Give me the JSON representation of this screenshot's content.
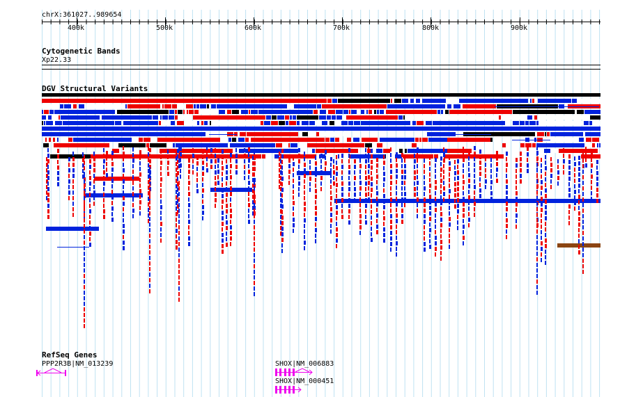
{
  "region_label": "chrX:361027..989654",
  "ruler": {
    "ticks": [
      "400k",
      "500k",
      "600k",
      "700k",
      "800k",
      "900k"
    ]
  },
  "tracks": {
    "cytobands": {
      "title": "Cytogenetic Bands",
      "band": "Xp22.33"
    },
    "dgv": {
      "title": "DGV Structural Variants"
    },
    "refseq": {
      "title": "RefSeq Genes"
    }
  },
  "genes": [
    {
      "label": "PPP2R3B|NM_013239"
    },
    {
      "label": "SHOX|NM_006883"
    },
    {
      "label": "SHOX|NM_000451"
    }
  ],
  "colors": {
    "loss": "#ee0000",
    "gain": "#0022dd",
    "inversion": "#8b4513",
    "complex": "#000000",
    "gene": "#ee00ee",
    "gridline": "#bfe2f2"
  }
}
